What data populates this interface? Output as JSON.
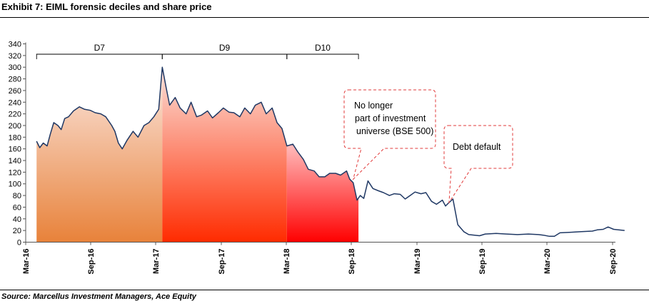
{
  "header": {
    "title": "Exhibit 7: EIML forensic deciles and share price"
  },
  "footer": {
    "source": "Source: Marcellus Investment Managers, Ace Equity"
  },
  "chart_data": {
    "type": "line",
    "title": "Exhibit 7: EIML forensic deciles and share price",
    "xlabel": "",
    "ylabel": "",
    "ylim": [
      0,
      340
    ],
    "y_ticks": [
      0,
      20,
      40,
      60,
      80,
      100,
      120,
      140,
      160,
      180,
      200,
      220,
      240,
      260,
      280,
      300,
      320,
      340
    ],
    "x_ticks": [
      "Mar-16",
      "Sep-16",
      "Mar-17",
      "Sep-17",
      "Mar-18",
      "Sep-18",
      "Mar-19",
      "Sep-19",
      "Mar-20",
      "Sep-20"
    ],
    "grid": false,
    "series": [
      {
        "x": [
          "2016-04-01",
          "2016-04-10",
          "2016-04-20",
          "2016-05-01",
          "2016-05-10",
          "2016-05-20",
          "2016-06-01",
          "2016-06-10",
          "2016-06-20",
          "2016-07-01",
          "2016-07-15",
          "2016-08-01",
          "2016-08-15",
          "2016-09-01",
          "2016-09-15",
          "2016-10-01",
          "2016-10-15",
          "2016-11-01",
          "2016-11-10",
          "2016-11-20",
          "2016-12-01",
          "2016-12-15",
          "2017-01-01",
          "2017-01-15",
          "2017-02-01",
          "2017-02-15",
          "2017-03-01",
          "2017-03-15",
          "2017-03-25",
          "2017-04-05",
          "2017-04-15",
          "2017-05-01",
          "2017-05-15",
          "2017-06-01",
          "2017-06-15",
          "2017-07-01",
          "2017-07-15",
          "2017-08-01",
          "2017-08-15",
          "2017-09-01",
          "2017-09-15",
          "2017-10-01",
          "2017-10-15",
          "2017-11-01",
          "2017-11-15",
          "2017-12-01",
          "2017-12-15",
          "2018-01-01",
          "2018-01-15",
          "2018-02-01",
          "2018-02-15",
          "2018-03-01",
          "2018-03-15",
          "2018-04-01",
          "2018-04-15",
          "2018-05-01",
          "2018-05-15",
          "2018-06-01",
          "2018-06-15",
          "2018-07-01",
          "2018-07-15",
          "2018-08-01",
          "2018-08-15",
          "2018-09-01",
          "2018-09-10",
          "2018-09-20",
          "2018-10-01",
          "2018-10-10",
          "2018-10-20",
          "2018-11-01",
          "2018-11-15",
          "2018-12-01",
          "2018-12-15",
          "2019-01-01",
          "2019-01-15",
          "2019-02-01",
          "2019-02-15",
          "2019-03-01",
          "2019-03-15",
          "2019-04-01",
          "2019-04-15",
          "2019-05-01",
          "2019-05-15",
          "2019-06-01",
          "2019-06-10",
          "2019-06-20",
          "2019-07-01",
          "2019-07-15",
          "2019-08-01",
          "2019-08-15",
          "2019-09-01",
          "2019-09-15",
          "2019-10-01",
          "2019-11-01",
          "2019-12-01",
          "2020-01-01",
          "2020-02-01",
          "2020-03-01",
          "2020-03-15",
          "2020-04-01",
          "2020-04-15",
          "2020-05-01",
          "2020-06-01",
          "2020-07-01",
          "2020-08-01",
          "2020-08-15",
          "2020-09-01",
          "2020-09-15",
          "2020-10-01",
          "2020-10-15",
          "2020-11-01"
        ],
        "values": [
          173,
          162,
          170,
          165,
          185,
          205,
          200,
          193,
          212,
          215,
          225,
          232,
          228,
          226,
          222,
          220,
          215,
          200,
          190,
          170,
          160,
          175,
          190,
          180,
          200,
          205,
          215,
          228,
          300,
          265,
          235,
          248,
          230,
          220,
          240,
          215,
          218,
          225,
          213,
          222,
          230,
          223,
          222,
          215,
          230,
          220,
          235,
          240,
          220,
          230,
          205,
          195,
          165,
          168,
          155,
          142,
          125,
          122,
          112,
          112,
          118,
          118,
          115,
          122,
          108,
          102,
          72,
          80,
          75,
          105,
          92,
          88,
          85,
          80,
          83,
          82,
          74,
          80,
          86,
          83,
          85,
          70,
          65,
          72,
          62,
          68,
          74,
          30,
          18,
          13,
          12,
          11,
          14,
          15,
          14,
          13,
          14,
          13,
          12,
          10,
          10,
          16,
          17,
          18,
          19,
          21,
          22,
          26,
          22,
          21,
          20
        ]
      }
    ],
    "deciles": [
      {
        "label": "D7",
        "start": "2016-04-01",
        "end": "2017-03-25",
        "color_top": "#fbe7e0",
        "color_bottom": "#e8823a"
      },
      {
        "label": "D9",
        "start": "2017-03-25",
        "end": "2018-03-15",
        "color_top": "#fbe1da",
        "color_bottom": "#ff2b00"
      },
      {
        "label": "D10",
        "start": "2018-03-15",
        "end": "2018-10-05",
        "color_top": "#ffbdbd",
        "color_bottom": "#ff0000"
      }
    ],
    "annotations": [
      {
        "lines": [
          "No longer",
          "part of investment",
          "universe (BSE 500)"
        ],
        "x": "2018-09-20",
        "y": 108
      },
      {
        "lines": [
          "Debt default"
        ],
        "x": "2019-06-20",
        "y": 68
      }
    ],
    "line_color": "#1f3864"
  }
}
